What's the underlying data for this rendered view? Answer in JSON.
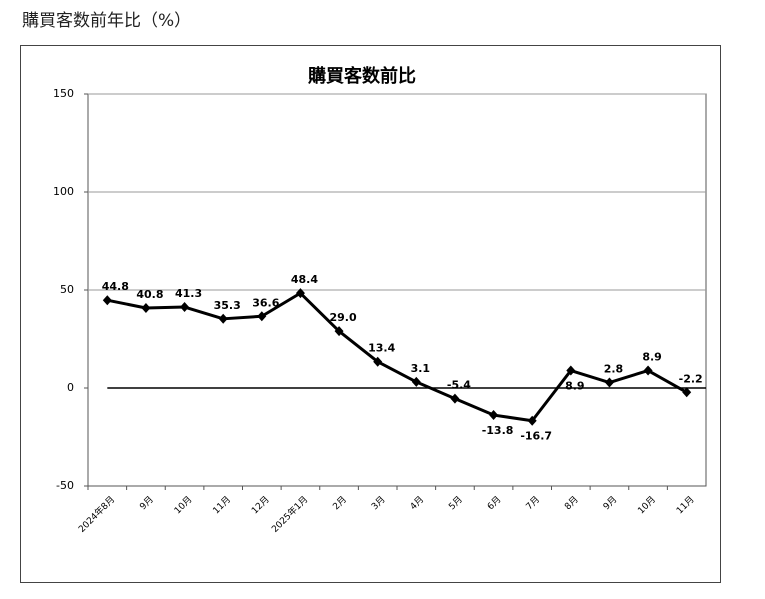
{
  "page_title": "購買客数前年比（%）",
  "chart_data": {
    "type": "line",
    "title": "購買客数前比",
    "categories": [
      "2024年8月",
      "9月",
      "10月",
      "11月",
      "12月",
      "2025年1月",
      "2月",
      "3月",
      "4月",
      "5月",
      "6月",
      "7月",
      "8月",
      "9月",
      "10月",
      "11月"
    ],
    "values": [
      44.8,
      40.8,
      41.3,
      35.3,
      36.6,
      48.4,
      29.0,
      13.4,
      3.1,
      -5.4,
      -13.8,
      -16.7,
      8.9,
      2.8,
      8.9,
      -2.2
    ],
    "value_labels": [
      "44.8",
      "40.8",
      "41.3",
      "35.3",
      "36.6",
      "48.4",
      "29.0",
      "13.4",
      "3.1",
      "-5.4",
      "-13.8",
      "-16.7",
      "8.9",
      "2.8",
      "8.9",
      "-2.2"
    ],
    "color": "#000000",
    "ylim": [
      -50,
      150
    ],
    "yticks": [
      -50,
      0,
      50,
      100,
      150
    ],
    "grid": true
  }
}
